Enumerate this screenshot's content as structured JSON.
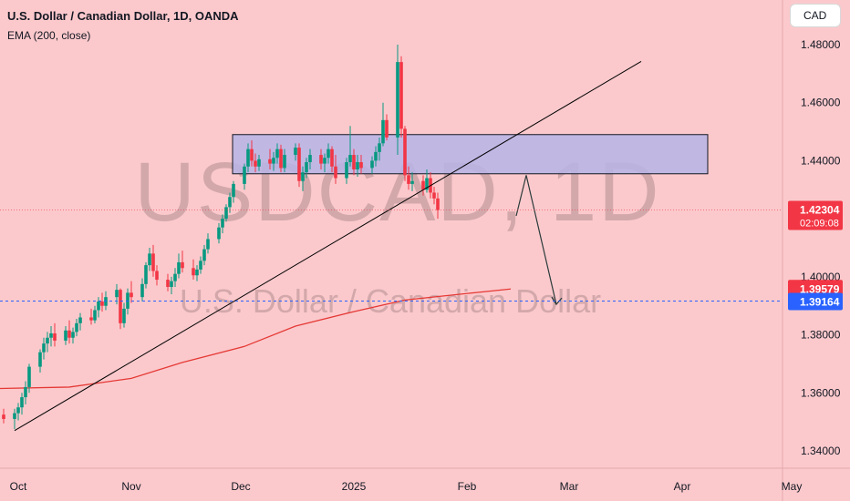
{
  "header": {
    "title": "U.S. Dollar / Canadian Dollar, 1D, OANDA",
    "indicator": "EMA (200, close)",
    "currency_button": "CAD"
  },
  "watermark": {
    "symbol": "USDCAD, 1D",
    "name": "U.S. Dollar / Canadian Dollar"
  },
  "price_labels": {
    "last_price": "1.42304",
    "countdown": "02:09:08",
    "ema_value": "1.39579",
    "line_level": "1.39164"
  },
  "colors": {
    "background": "#fbc9cc",
    "up": "#089981",
    "down": "#f23645",
    "ema": "#e53935",
    "zone_fill": "#b6b4e6",
    "trendline": "#000000",
    "dashed_line": "#2962ff"
  },
  "chart_data": {
    "type": "candlestick",
    "title": "U.S. Dollar / Canadian Dollar, 1D, OANDA",
    "ylim": [
      1.33,
      1.49
    ],
    "y_ticks": [
      "1.48000",
      "1.46000",
      "1.44000",
      "1.42000",
      "1.40000",
      "1.38000",
      "1.36000",
      "1.34000"
    ],
    "x_ticks": [
      "Oct",
      "Nov",
      "Dec",
      "2025",
      "Feb",
      "Mar",
      "Apr",
      "May"
    ],
    "start": "2024-09-27",
    "candles": [
      [
        1.3525,
        1.3545,
        1.3495,
        1.351
      ],
      [
        1.351,
        1.3545,
        1.3475,
        1.353
      ],
      [
        1.353,
        1.3565,
        1.3505,
        1.355
      ],
      [
        1.355,
        1.36,
        1.3525,
        1.3585
      ],
      [
        1.3585,
        1.364,
        1.356,
        1.362
      ],
      [
        1.362,
        1.37,
        1.36,
        1.369
      ],
      [
        1.369,
        1.375,
        1.367,
        1.374
      ],
      [
        1.374,
        1.379,
        1.3715,
        1.377
      ],
      [
        1.377,
        1.381,
        1.374,
        1.379
      ],
      [
        1.379,
        1.383,
        1.376,
        1.3805
      ],
      [
        1.3805,
        1.384,
        1.376,
        1.378
      ],
      [
        1.378,
        1.383,
        1.3765,
        1.3815
      ],
      [
        1.3815,
        1.385,
        1.377,
        1.379
      ],
      [
        1.379,
        1.3825,
        1.377,
        1.381
      ],
      [
        1.381,
        1.3855,
        1.3795,
        1.384
      ],
      [
        1.384,
        1.3875,
        1.3815,
        1.386
      ],
      [
        1.386,
        1.389,
        1.3835,
        1.385
      ],
      [
        1.385,
        1.39,
        1.384,
        1.3885
      ],
      [
        1.3885,
        1.393,
        1.386,
        1.3915
      ],
      [
        1.3915,
        1.3945,
        1.388,
        1.39
      ],
      [
        1.39,
        1.395,
        1.3885,
        1.393
      ],
      [
        1.393,
        1.3975,
        1.3905,
        1.3955
      ],
      [
        1.3955,
        1.396,
        1.382,
        1.384
      ],
      [
        1.384,
        1.391,
        1.3825,
        1.389
      ],
      [
        1.389,
        1.396,
        1.387,
        1.3945
      ],
      [
        1.3945,
        1.3985,
        1.391,
        1.393
      ],
      [
        1.393,
        1.3995,
        1.3915,
        1.3975
      ],
      [
        1.3975,
        1.405,
        1.396,
        1.404
      ],
      [
        1.404,
        1.41,
        1.402,
        1.408
      ],
      [
        1.408,
        1.411,
        1.4,
        1.402
      ],
      [
        1.402,
        1.404,
        1.397,
        1.399
      ],
      [
        1.399,
        1.401,
        1.395,
        1.3965
      ],
      [
        1.3965,
        1.4,
        1.394,
        1.3985
      ],
      [
        1.3985,
        1.403,
        1.3965,
        1.401
      ],
      [
        1.401,
        1.408,
        1.3995,
        1.405
      ],
      [
        1.405,
        1.409,
        1.4015,
        1.403
      ],
      [
        1.403,
        1.406,
        1.399,
        1.4005
      ],
      [
        1.4005,
        1.404,
        1.3985,
        1.4025
      ],
      [
        1.4025,
        1.407,
        1.401,
        1.4055
      ],
      [
        1.4055,
        1.411,
        1.404,
        1.4095
      ],
      [
        1.4095,
        1.415,
        1.408,
        1.413
      ],
      [
        1.413,
        1.4185,
        1.4115,
        1.417
      ],
      [
        1.417,
        1.4215,
        1.415,
        1.42
      ],
      [
        1.42,
        1.425,
        1.419,
        1.424
      ],
      [
        1.424,
        1.429,
        1.422,
        1.4275
      ],
      [
        1.4275,
        1.433,
        1.4255,
        1.432
      ],
      [
        1.432,
        1.439,
        1.43,
        1.438
      ],
      [
        1.438,
        1.446,
        1.436,
        1.444
      ],
      [
        1.444,
        1.447,
        1.438,
        1.44
      ],
      [
        1.44,
        1.4425,
        1.436,
        1.438
      ],
      [
        1.438,
        1.442,
        1.4365,
        1.4405
      ],
      [
        1.4405,
        1.444,
        1.437,
        1.439
      ],
      [
        1.439,
        1.443,
        1.4365,
        1.441
      ],
      [
        1.441,
        1.446,
        1.439,
        1.444
      ],
      [
        1.444,
        1.4455,
        1.436,
        1.4375
      ],
      [
        1.4375,
        1.444,
        1.436,
        1.442
      ],
      [
        1.442,
        1.446,
        1.44,
        1.4445
      ],
      [
        1.4445,
        1.446,
        1.431,
        1.433
      ],
      [
        1.433,
        1.438,
        1.4295,
        1.436
      ],
      [
        1.436,
        1.441,
        1.434,
        1.4395
      ],
      [
        1.4395,
        1.444,
        1.437,
        1.442
      ],
      [
        1.442,
        1.444,
        1.437,
        1.439
      ],
      [
        1.439,
        1.4425,
        1.436,
        1.441
      ],
      [
        1.441,
        1.446,
        1.439,
        1.444
      ],
      [
        1.444,
        1.445,
        1.436,
        1.438
      ],
      [
        1.438,
        1.442,
        1.432,
        1.434
      ],
      [
        1.434,
        1.441,
        1.432,
        1.4395
      ],
      [
        1.4395,
        1.452,
        1.438,
        1.442
      ],
      [
        1.442,
        1.444,
        1.435,
        1.437
      ],
      [
        1.437,
        1.442,
        1.4345,
        1.4395
      ],
      [
        1.4395,
        1.442,
        1.4355,
        1.4375
      ],
      [
        1.4375,
        1.4415,
        1.4355,
        1.44
      ],
      [
        1.44,
        1.445,
        1.438,
        1.443
      ],
      [
        1.443,
        1.448,
        1.44,
        1.446
      ],
      [
        1.446,
        1.46,
        1.445,
        1.454
      ],
      [
        1.454,
        1.456,
        1.447,
        1.448
      ],
      [
        1.448,
        1.48,
        1.442,
        1.474
      ],
      [
        1.474,
        1.476,
        1.448,
        1.451
      ],
      [
        1.451,
        1.452,
        1.433,
        1.435
      ],
      [
        1.435,
        1.438,
        1.43,
        1.432
      ],
      [
        1.432,
        1.436,
        1.4295,
        1.433
      ],
      [
        1.433,
        1.435,
        1.428,
        1.43
      ],
      [
        1.43,
        1.437,
        1.429,
        1.434
      ],
      [
        1.434,
        1.436,
        1.427,
        1.429
      ],
      [
        1.429,
        1.431,
        1.425,
        1.427
      ],
      [
        1.427,
        1.429,
        1.42,
        1.423
      ]
    ],
    "ema": [
      [
        "2024-09-27",
        1.3615
      ],
      [
        "2024-10-15",
        1.362
      ],
      [
        "2024-11-01",
        1.365
      ],
      [
        "2024-11-15",
        1.3705
      ],
      [
        "2024-12-02",
        1.376
      ],
      [
        "2024-12-16",
        1.383
      ],
      [
        "2025-01-01",
        1.388
      ],
      [
        "2025-01-15",
        1.392
      ],
      [
        "2025-02-03",
        1.3945
      ],
      [
        "2025-02-13",
        1.3958
      ]
    ],
    "annotations": {
      "resistance_zone": {
        "from": "2024-12-02",
        "to": "2025-02-25",
        "top": 1.449,
        "bottom": 1.4355
      },
      "trendline": {
        "from": [
          "2024-09-27",
          1.347
        ],
        "to": [
          "2025-03-24",
          1.4742
        ]
      },
      "forecast_path": [
        [
          "2025-02-13",
          1.421
        ],
        [
          "2025-02-18",
          1.435
        ],
        [
          "2025-02-24",
          1.3905
        ]
      ],
      "horizontal_level": 1.39164
    }
  }
}
